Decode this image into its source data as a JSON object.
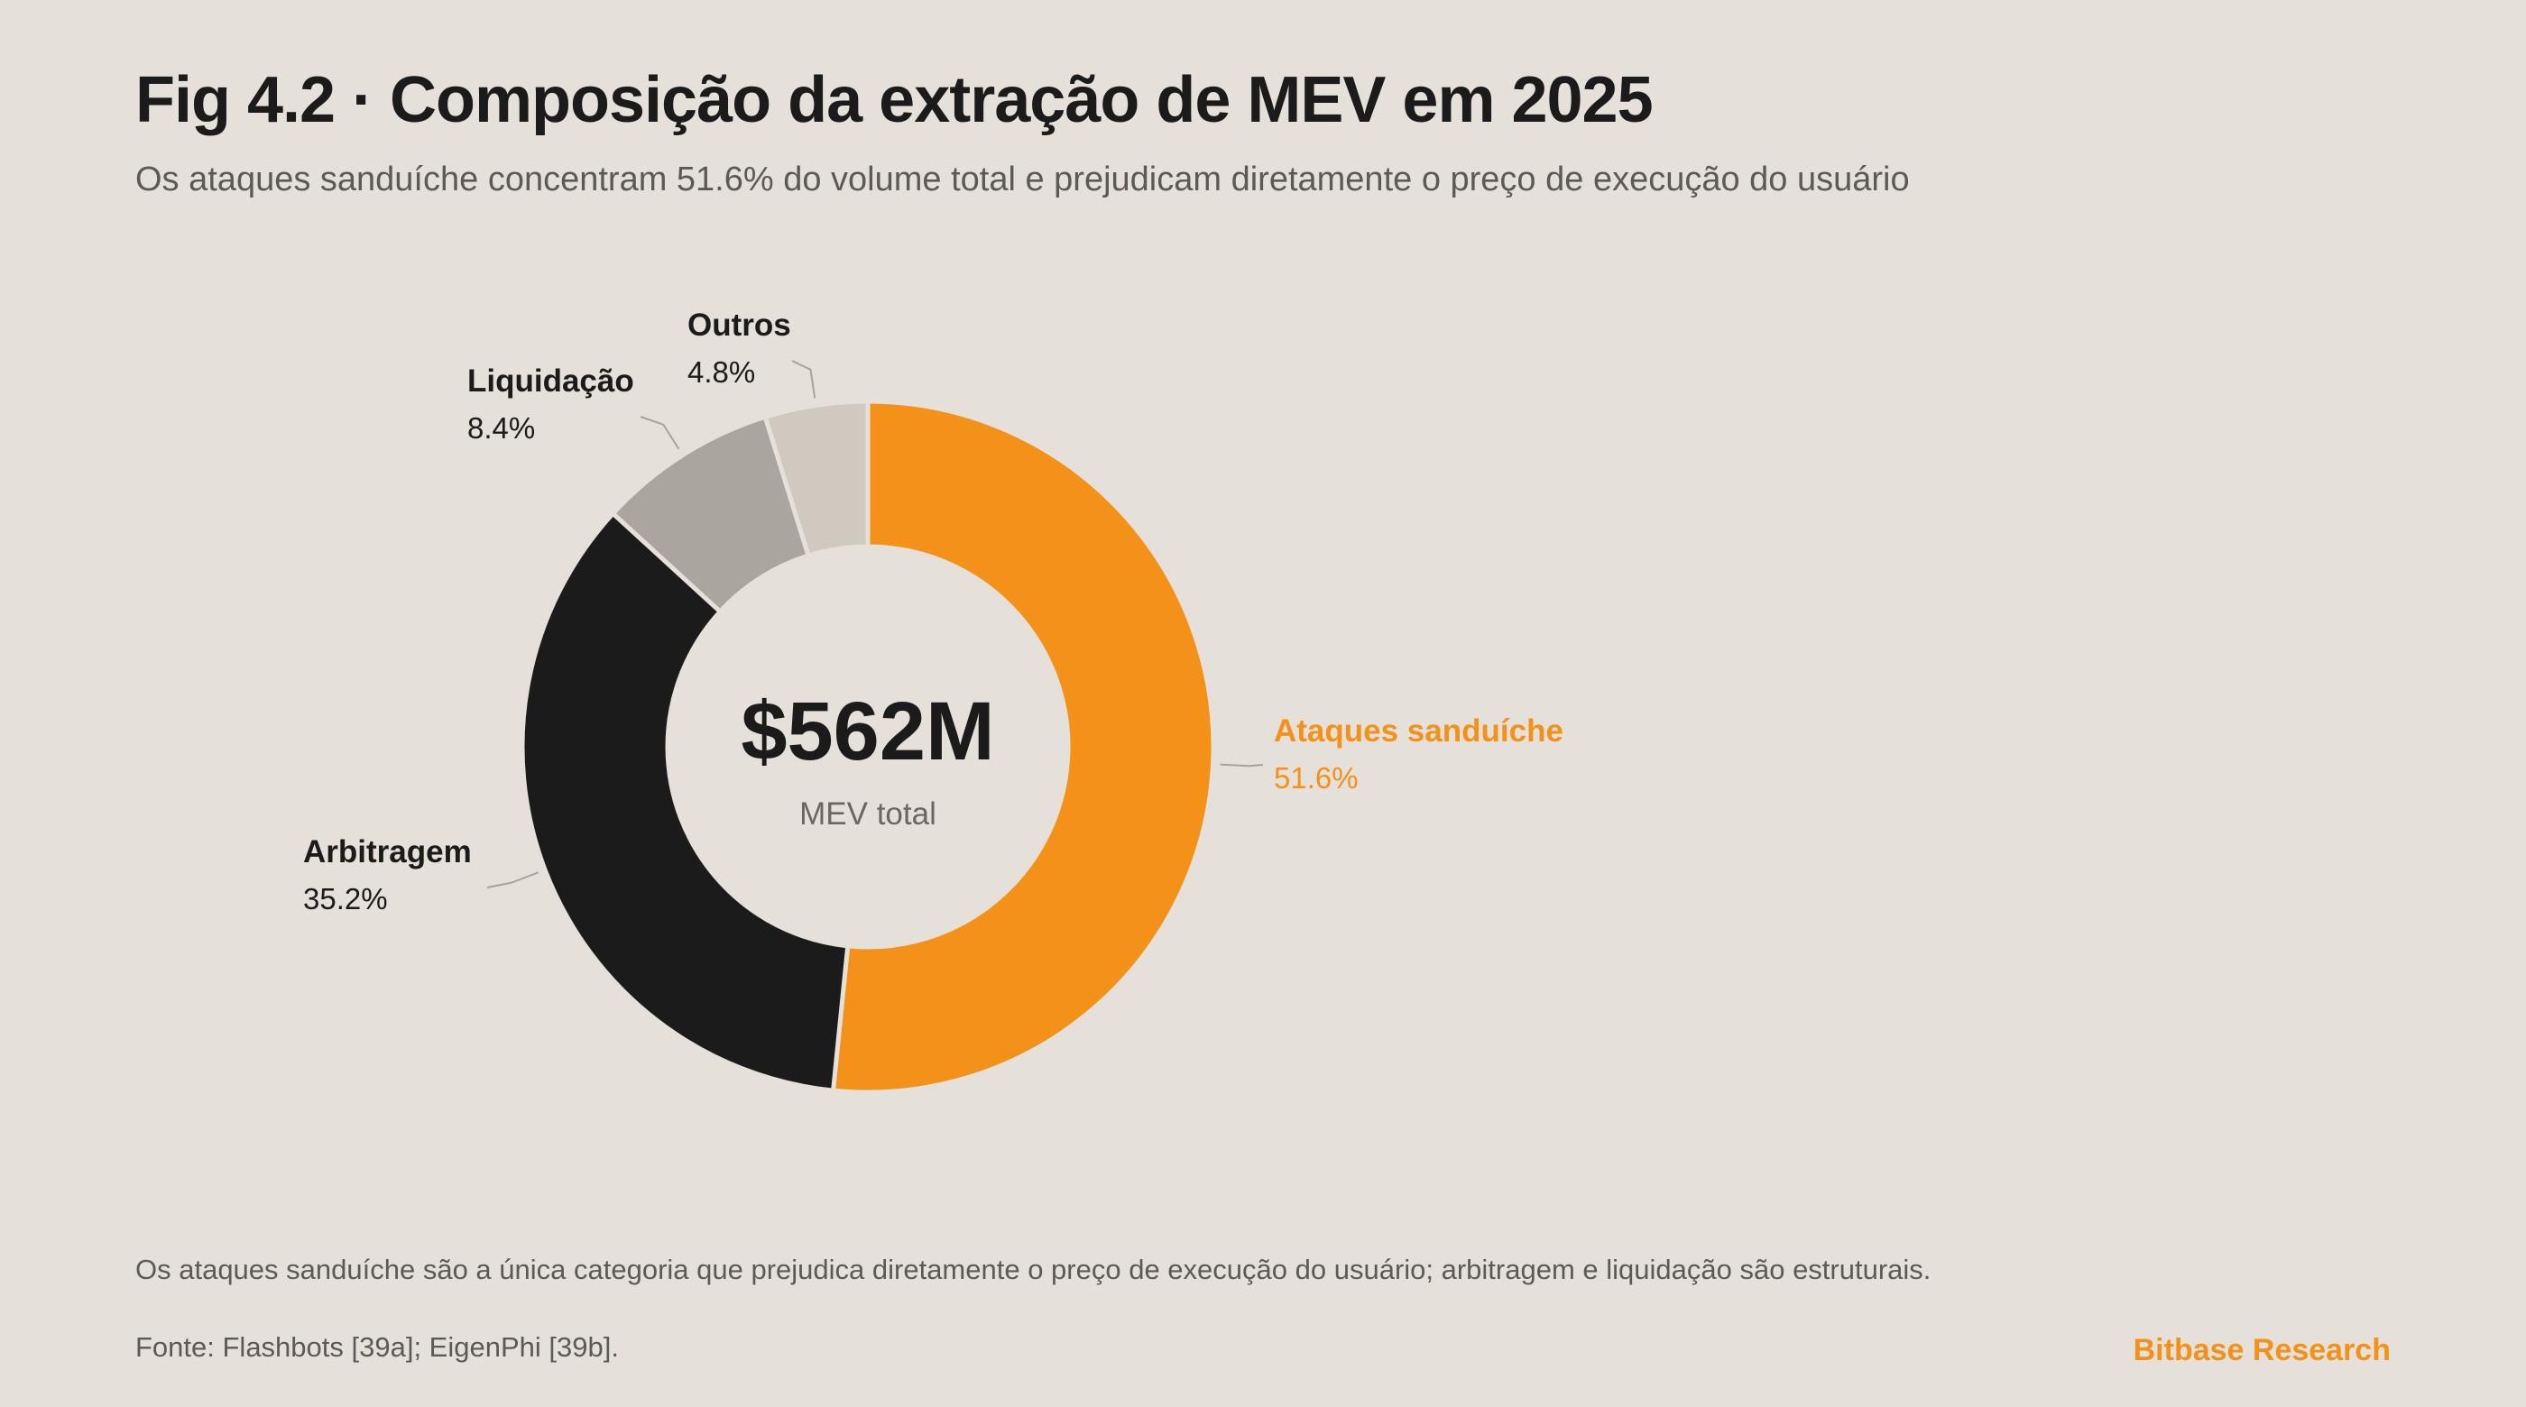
{
  "header": {
    "title": "Fig 4.2 · Composição da extração de MEV em 2025",
    "subtitle": "Os ataques sanduíche concentram 51.6% do volume total e prejudicam diretamente o preço de execução do usuário"
  },
  "chart_data": {
    "type": "pie",
    "variant": "donut",
    "center_value": "$562M",
    "center_label": "MEV total",
    "series": [
      {
        "name": "Ataques sanduíche",
        "value": 51.6,
        "label": "51.6%",
        "color": "#f39119"
      },
      {
        "name": "Arbitragem",
        "value": 35.2,
        "label": "35.2%",
        "color": "#1b1b1b"
      },
      {
        "name": "Liquidação",
        "value": 8.4,
        "label": "8.4%",
        "color": "#aaa59e"
      },
      {
        "name": "Outros",
        "value": 4.8,
        "label": "4.8%",
        "color": "#d0c9bf"
      }
    ]
  },
  "footer": {
    "note": "Os ataques sanduíche são a única categoria que prejudica diretamente o preço de execução do usuário; arbitragem e liquidação são estruturais.",
    "source": "Fonte: Flashbots [39a]; EigenPhi [39b].",
    "brand": "Bitbase Research"
  },
  "colors": {
    "background": "#e5e0da",
    "accent": "#f39119",
    "text": "#1b1b1b",
    "muted": "#5c5a57"
  }
}
